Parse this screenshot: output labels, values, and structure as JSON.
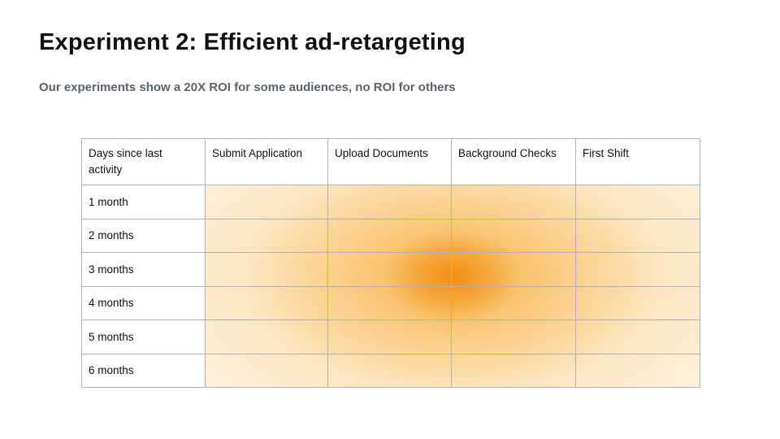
{
  "slide": {
    "title": "Experiment 2: Efficient ad-retargeting",
    "subtitle": "Our experiments show a 20X ROI for some audiences, no ROI for others"
  },
  "table": {
    "columns": [
      "Days since last activity",
      "Submit Application",
      "Upload Documents",
      "Background Checks",
      "First Shift"
    ],
    "rows": [
      {
        "label": "1 month"
      },
      {
        "label": "2 months"
      },
      {
        "label": "3 months"
      },
      {
        "label": "4 months"
      },
      {
        "label": "5 months"
      },
      {
        "label": "6 months"
      }
    ]
  },
  "colors": {
    "heat_peak": "#f18c0d",
    "heat_mid": "#f6a324",
    "heat_light": "#fde0af",
    "border": "#b2b2b2",
    "subtitle_text": "#5f6368",
    "title_text": "#111111"
  },
  "chart_data": {
    "type": "heatmap",
    "title": "Experiment 2: Efficient ad-retargeting",
    "subtitle": "Our experiments show a 20X ROI for some audiences, no ROI for others",
    "x_categories": [
      "Submit Application",
      "Upload Documents",
      "Background Checks",
      "First Shift"
    ],
    "y_categories": [
      "1 month",
      "2 months",
      "3 months",
      "4 months",
      "5 months",
      "6 months"
    ],
    "y_axis_label": "Days since last activity",
    "value_scale": "estimated relative intensity 0-1 (no numeric labels shown)",
    "values": [
      [
        0.25,
        0.35,
        0.35,
        0.15
      ],
      [
        0.4,
        0.6,
        0.55,
        0.25
      ],
      [
        0.5,
        0.9,
        0.85,
        0.3
      ],
      [
        0.5,
        0.95,
        0.85,
        0.3
      ],
      [
        0.4,
        0.6,
        0.55,
        0.25
      ],
      [
        0.25,
        0.35,
        0.3,
        0.15
      ]
    ],
    "peak": {
      "row": "3-4 months",
      "column": "Upload Documents / Background Checks boundary"
    },
    "legend": "none",
    "grid": true
  }
}
